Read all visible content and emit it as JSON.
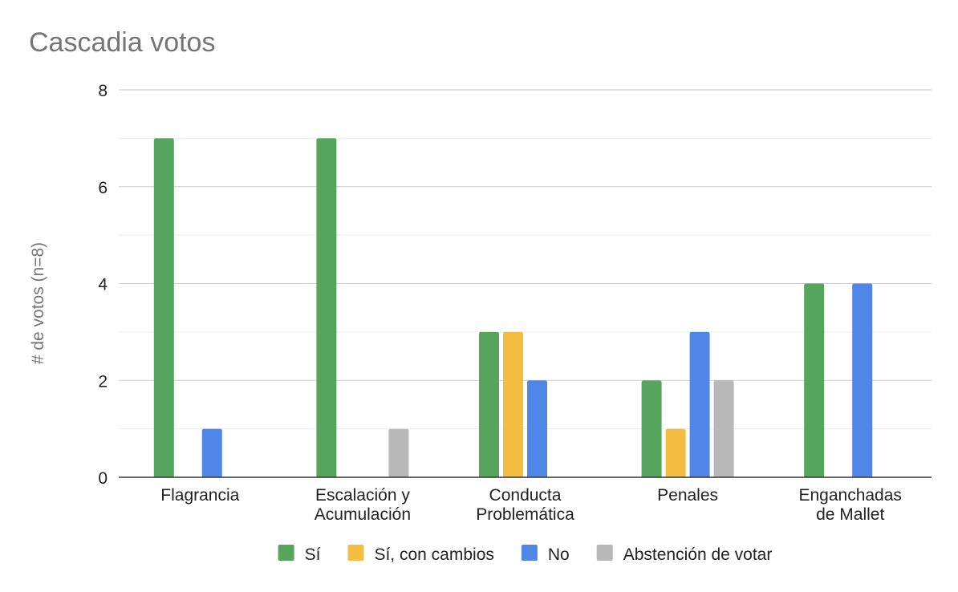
{
  "chart_data": {
    "type": "bar",
    "title": "Cascadia votos",
    "xlabel": "",
    "ylabel": "# de votos (n=8)",
    "ylim": [
      0,
      8
    ],
    "yticks": [
      0,
      2,
      4,
      6,
      8
    ],
    "minor_gridlines": true,
    "legend_position": "bottom",
    "categories": [
      [
        "Flagrancia"
      ],
      [
        "Escalación y",
        "Acumulación"
      ],
      [
        "Conducta",
        "Problemática"
      ],
      [
        "Penales"
      ],
      [
        "Enganchadas",
        "de Mallet"
      ]
    ],
    "series": [
      {
        "name": "Sí",
        "color": "#57a55d",
        "values": [
          7,
          7,
          3,
          2,
          4
        ]
      },
      {
        "name": "Sí, con cambios",
        "color": "#f3bd42",
        "values": [
          0,
          0,
          3,
          1,
          0
        ]
      },
      {
        "name": "No",
        "color": "#4f86e8",
        "values": [
          1,
          0,
          2,
          3,
          4
        ]
      },
      {
        "name": "Abstención de votar",
        "color": "#b8b8b8",
        "values": [
          0,
          1,
          0,
          2,
          0
        ]
      }
    ]
  }
}
